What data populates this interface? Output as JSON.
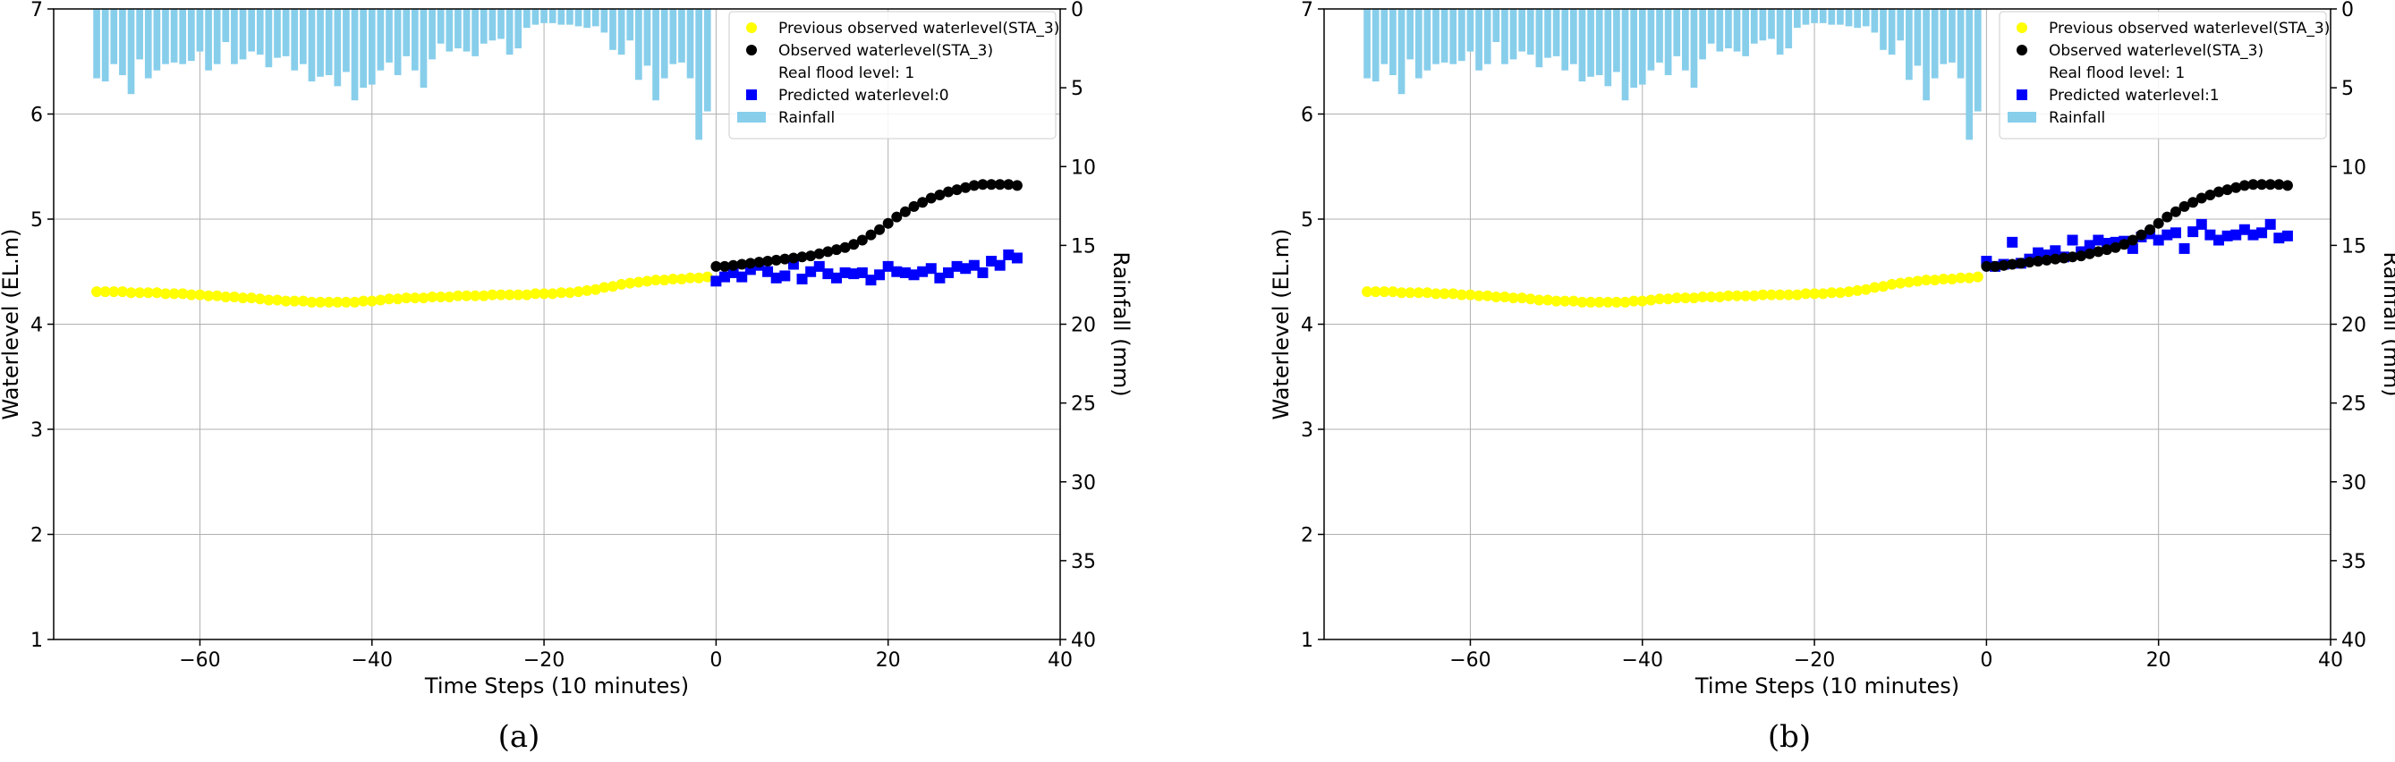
{
  "chart_data": [
    {
      "type": "scatter",
      "caption": "(a)",
      "xlabel": "Time Steps (10 minutes)",
      "ylabel": "Waterlevel (EL.m)",
      "y2label": "Rainfall (mm)",
      "xlim": [
        -77,
        40
      ],
      "ylim": [
        1,
        7
      ],
      "y2lim": [
        40,
        0
      ],
      "xticks": [
        -60,
        -40,
        -20,
        0,
        20,
        40
      ],
      "yticks": [
        1,
        2,
        3,
        4,
        5,
        6,
        7
      ],
      "y2ticks": [
        0,
        5,
        10,
        15,
        20,
        25,
        30,
        35,
        40
      ],
      "grid": true,
      "legend_position": "top-right",
      "legend": {
        "previous": "Previous observed waterlevel(STA_3)",
        "observed": "Observed waterlevel(STA_3)",
        "flood": "Real flood level: 1",
        "predicted": "Predicted waterlevel:0",
        "rainfall": "Rainfall"
      },
      "colors": {
        "previous": "#ffff00",
        "observed": "#000000",
        "predicted": "#0000ff",
        "rainfall": "#87ceeb"
      },
      "rainfall": {
        "x": [
          -72,
          -71,
          -70,
          -69,
          -68,
          -67,
          -66,
          -65,
          -64,
          -63,
          -62,
          -61,
          -60,
          -59,
          -58,
          -57,
          -56,
          -55,
          -54,
          -53,
          -52,
          -51,
          -50,
          -49,
          -48,
          -47,
          -46,
          -45,
          -44,
          -43,
          -42,
          -41,
          -40,
          -39,
          -38,
          -37,
          -36,
          -35,
          -34,
          -33,
          -32,
          -31,
          -30,
          -29,
          -28,
          -27,
          -26,
          -25,
          -24,
          -23,
          -22,
          -21,
          -20,
          -19,
          -18,
          -17,
          -16,
          -15,
          -14,
          -13,
          -12,
          -11,
          -10,
          -9,
          -8,
          -7,
          -6,
          -5,
          -4,
          -3,
          -2,
          -1
        ],
        "values": [
          4.4,
          4.6,
          3.5,
          4.2,
          5.4,
          3.2,
          4.4,
          3.9,
          3.5,
          3.4,
          3.5,
          3.3,
          2.7,
          3.9,
          3.5,
          2.1,
          3.5,
          3.2,
          2.7,
          2.9,
          3.7,
          3.1,
          3.0,
          3.9,
          3.5,
          4.6,
          4.3,
          4.2,
          4.9,
          4.0,
          5.8,
          5.0,
          4.8,
          3.9,
          3.4,
          4.2,
          3.0,
          3.9,
          5.0,
          3.2,
          2.2,
          2.7,
          2.5,
          2.7,
          3.0,
          2.2,
          2.0,
          1.9,
          2.9,
          2.5,
          1.2,
          1.0,
          0.9,
          0.9,
          1.0,
          1.0,
          1.1,
          1.2,
          1.1,
          1.5,
          2.6,
          2.9,
          2.0,
          4.5,
          3.6,
          5.8,
          4.4,
          3.5,
          3.4,
          4.4,
          8.3,
          6.5
        ]
      },
      "previous": {
        "x": [
          -72,
          -71,
          -70,
          -69,
          -68,
          -67,
          -66,
          -65,
          -64,
          -63,
          -62,
          -61,
          -60,
          -59,
          -58,
          -57,
          -56,
          -55,
          -54,
          -53,
          -52,
          -51,
          -50,
          -49,
          -48,
          -47,
          -46,
          -45,
          -44,
          -43,
          -42,
          -41,
          -40,
          -39,
          -38,
          -37,
          -36,
          -35,
          -34,
          -33,
          -32,
          -31,
          -30,
          -29,
          -28,
          -27,
          -26,
          -25,
          -24,
          -23,
          -22,
          -21,
          -20,
          -19,
          -18,
          -17,
          -16,
          -15,
          -14,
          -13,
          -12,
          -11,
          -10,
          -9,
          -8,
          -7,
          -6,
          -5,
          -4,
          -3,
          -2,
          -1
        ],
        "values": [
          4.31,
          4.31,
          4.31,
          4.31,
          4.3,
          4.3,
          4.3,
          4.3,
          4.29,
          4.29,
          4.29,
          4.28,
          4.28,
          4.27,
          4.27,
          4.26,
          4.26,
          4.25,
          4.25,
          4.24,
          4.23,
          4.23,
          4.22,
          4.22,
          4.22,
          4.21,
          4.21,
          4.21,
          4.21,
          4.21,
          4.21,
          4.22,
          4.22,
          4.23,
          4.24,
          4.24,
          4.25,
          4.25,
          4.25,
          4.26,
          4.26,
          4.26,
          4.27,
          4.27,
          4.27,
          4.27,
          4.28,
          4.28,
          4.28,
          4.28,
          4.28,
          4.29,
          4.29,
          4.29,
          4.3,
          4.3,
          4.31,
          4.32,
          4.33,
          4.35,
          4.36,
          4.38,
          4.39,
          4.4,
          4.41,
          4.42,
          4.42,
          4.43,
          4.43,
          4.44,
          4.44,
          4.45
        ]
      },
      "observed": {
        "x": [
          0,
          1,
          2,
          3,
          4,
          5,
          6,
          7,
          8,
          9,
          10,
          11,
          12,
          13,
          14,
          15,
          16,
          17,
          18,
          19,
          20,
          21,
          22,
          23,
          24,
          25,
          26,
          27,
          28,
          29,
          30,
          31,
          32,
          33,
          34,
          35
        ],
        "values": [
          4.55,
          4.55,
          4.56,
          4.57,
          4.58,
          4.59,
          4.6,
          4.61,
          4.62,
          4.63,
          4.64,
          4.65,
          4.67,
          4.69,
          4.71,
          4.73,
          4.76,
          4.8,
          4.85,
          4.9,
          4.96,
          5.02,
          5.07,
          5.12,
          5.16,
          5.2,
          5.23,
          5.26,
          5.28,
          5.3,
          5.32,
          5.33,
          5.33,
          5.33,
          5.33,
          5.32
        ]
      },
      "predicted": {
        "x": [
          0,
          1,
          2,
          3,
          4,
          5,
          6,
          7,
          8,
          9,
          10,
          11,
          12,
          13,
          14,
          15,
          16,
          17,
          18,
          19,
          20,
          21,
          22,
          23,
          24,
          25,
          26,
          27,
          28,
          29,
          30,
          31,
          32,
          33,
          34,
          35
        ],
        "values": [
          4.41,
          4.45,
          4.49,
          4.45,
          4.52,
          4.56,
          4.5,
          4.44,
          4.46,
          4.57,
          4.43,
          4.5,
          4.55,
          4.48,
          4.44,
          4.49,
          4.48,
          4.49,
          4.42,
          4.47,
          4.55,
          4.5,
          4.49,
          4.47,
          4.5,
          4.53,
          4.44,
          4.49,
          4.55,
          4.53,
          4.56,
          4.49,
          4.6,
          4.56,
          4.66,
          4.63
        ]
      }
    },
    {
      "type": "scatter",
      "caption": "(b)",
      "xlabel": "Time Steps (10 minutes)",
      "ylabel": "Waterlevel (EL.m)",
      "y2label": "Rainfall (mm)",
      "xlim": [
        -77,
        40
      ],
      "ylim": [
        1,
        7
      ],
      "y2lim": [
        40,
        0
      ],
      "xticks": [
        -60,
        -40,
        -20,
        0,
        20,
        40
      ],
      "yticks": [
        1,
        2,
        3,
        4,
        5,
        6,
        7
      ],
      "y2ticks": [
        0,
        5,
        10,
        15,
        20,
        25,
        30,
        35,
        40
      ],
      "grid": true,
      "legend_position": "top-right",
      "legend": {
        "previous": "Previous observed waterlevel(STA_3)",
        "observed": "Observed waterlevel(STA_3)",
        "flood": "Real flood level: 1",
        "predicted": "Predicted waterlevel:1",
        "rainfall": "Rainfall"
      },
      "colors": {
        "previous": "#ffff00",
        "observed": "#000000",
        "predicted": "#0000ff",
        "rainfall": "#87ceeb"
      },
      "rainfall": {
        "x": [
          -72,
          -71,
          -70,
          -69,
          -68,
          -67,
          -66,
          -65,
          -64,
          -63,
          -62,
          -61,
          -60,
          -59,
          -58,
          -57,
          -56,
          -55,
          -54,
          -53,
          -52,
          -51,
          -50,
          -49,
          -48,
          -47,
          -46,
          -45,
          -44,
          -43,
          -42,
          -41,
          -40,
          -39,
          -38,
          -37,
          -36,
          -35,
          -34,
          -33,
          -32,
          -31,
          -30,
          -29,
          -28,
          -27,
          -26,
          -25,
          -24,
          -23,
          -22,
          -21,
          -20,
          -19,
          -18,
          -17,
          -16,
          -15,
          -14,
          -13,
          -12,
          -11,
          -10,
          -9,
          -8,
          -7,
          -6,
          -5,
          -4,
          -3,
          -2,
          -1
        ],
        "values": [
          4.4,
          4.6,
          3.5,
          4.2,
          5.4,
          3.2,
          4.4,
          3.9,
          3.5,
          3.4,
          3.5,
          3.3,
          2.7,
          3.9,
          3.5,
          2.1,
          3.5,
          3.2,
          2.7,
          2.9,
          3.7,
          3.1,
          3.0,
          3.9,
          3.5,
          4.6,
          4.3,
          4.2,
          4.9,
          4.0,
          5.8,
          5.0,
          4.8,
          3.9,
          3.4,
          4.2,
          3.0,
          3.9,
          5.0,
          3.2,
          2.2,
          2.7,
          2.5,
          2.7,
          3.0,
          2.2,
          2.0,
          1.9,
          2.9,
          2.5,
          1.2,
          1.0,
          0.9,
          0.9,
          1.0,
          1.0,
          1.1,
          1.2,
          1.1,
          1.5,
          2.6,
          2.9,
          2.0,
          4.5,
          3.6,
          5.8,
          4.4,
          3.5,
          3.4,
          4.4,
          8.3,
          6.5
        ]
      },
      "previous": {
        "x": [
          -72,
          -71,
          -70,
          -69,
          -68,
          -67,
          -66,
          -65,
          -64,
          -63,
          -62,
          -61,
          -60,
          -59,
          -58,
          -57,
          -56,
          -55,
          -54,
          -53,
          -52,
          -51,
          -50,
          -49,
          -48,
          -47,
          -46,
          -45,
          -44,
          -43,
          -42,
          -41,
          -40,
          -39,
          -38,
          -37,
          -36,
          -35,
          -34,
          -33,
          -32,
          -31,
          -30,
          -29,
          -28,
          -27,
          -26,
          -25,
          -24,
          -23,
          -22,
          -21,
          -20,
          -19,
          -18,
          -17,
          -16,
          -15,
          -14,
          -13,
          -12,
          -11,
          -10,
          -9,
          -8,
          -7,
          -6,
          -5,
          -4,
          -3,
          -2,
          -1
        ],
        "values": [
          4.31,
          4.31,
          4.31,
          4.31,
          4.3,
          4.3,
          4.3,
          4.3,
          4.29,
          4.29,
          4.29,
          4.28,
          4.28,
          4.27,
          4.27,
          4.26,
          4.26,
          4.25,
          4.25,
          4.24,
          4.23,
          4.23,
          4.22,
          4.22,
          4.22,
          4.21,
          4.21,
          4.21,
          4.21,
          4.21,
          4.21,
          4.22,
          4.22,
          4.23,
          4.24,
          4.24,
          4.25,
          4.25,
          4.25,
          4.26,
          4.26,
          4.26,
          4.27,
          4.27,
          4.27,
          4.27,
          4.28,
          4.28,
          4.28,
          4.28,
          4.28,
          4.29,
          4.29,
          4.29,
          4.3,
          4.3,
          4.31,
          4.32,
          4.33,
          4.35,
          4.36,
          4.38,
          4.39,
          4.4,
          4.41,
          4.42,
          4.42,
          4.43,
          4.43,
          4.44,
          4.44,
          4.45
        ]
      },
      "observed": {
        "x": [
          0,
          1,
          2,
          3,
          4,
          5,
          6,
          7,
          8,
          9,
          10,
          11,
          12,
          13,
          14,
          15,
          16,
          17,
          18,
          19,
          20,
          21,
          22,
          23,
          24,
          25,
          26,
          27,
          28,
          29,
          30,
          31,
          32,
          33,
          34,
          35
        ],
        "values": [
          4.55,
          4.55,
          4.56,
          4.57,
          4.58,
          4.59,
          4.6,
          4.61,
          4.62,
          4.63,
          4.64,
          4.65,
          4.67,
          4.69,
          4.71,
          4.73,
          4.76,
          4.8,
          4.85,
          4.9,
          4.96,
          5.02,
          5.07,
          5.12,
          5.16,
          5.2,
          5.23,
          5.26,
          5.28,
          5.3,
          5.32,
          5.33,
          5.33,
          5.33,
          5.33,
          5.32
        ]
      },
      "predicted": {
        "x": [
          0,
          1,
          2,
          3,
          4,
          5,
          6,
          7,
          8,
          9,
          10,
          11,
          12,
          13,
          14,
          15,
          16,
          17,
          18,
          19,
          20,
          21,
          22,
          23,
          24,
          25,
          26,
          27,
          28,
          29,
          30,
          31,
          32,
          33,
          34,
          35
        ],
        "values": [
          4.6,
          4.55,
          4.57,
          4.78,
          4.58,
          4.62,
          4.68,
          4.66,
          4.7,
          4.64,
          4.8,
          4.69,
          4.75,
          4.8,
          4.77,
          4.78,
          4.79,
          4.72,
          4.83,
          4.86,
          4.8,
          4.85,
          4.87,
          4.72,
          4.88,
          4.95,
          4.85,
          4.8,
          4.84,
          4.85,
          4.9,
          4.85,
          4.87,
          4.95,
          4.82,
          4.84
        ]
      }
    }
  ]
}
